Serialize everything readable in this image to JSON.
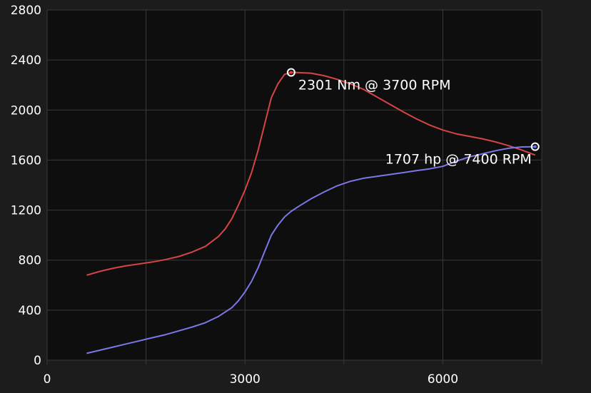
{
  "colors": {
    "background": "#1c1c1c",
    "plot_background": "#0e0e0f",
    "grid": "#3a3a3a",
    "text": "#ffffff",
    "torque": "#d64545",
    "power": "#7a78e8"
  },
  "chart_data": {
    "type": "line",
    "title": "",
    "xlabel": "",
    "ylabel": "",
    "xlim": [
      0,
      7500
    ],
    "ylim": [
      0,
      2800
    ],
    "x_ticks": [
      0,
      3000,
      6000
    ],
    "x_tick_labels": [
      "0",
      "3000",
      "6000"
    ],
    "x_minor_ticks": [
      1500,
      4500,
      7500
    ],
    "y_ticks": [
      0,
      400,
      800,
      1200,
      1600,
      2000,
      2400,
      2800
    ],
    "y_tick_labels": [
      "0",
      "400",
      "800",
      "1200",
      "1600",
      "2000",
      "2400",
      "2800"
    ],
    "grid": true,
    "series": [
      {
        "color": "#d64545",
        "x": [
          600,
          800,
          1000,
          1200,
          1400,
          1600,
          1800,
          2000,
          2200,
          2400,
          2600,
          2700,
          2800,
          2900,
          3000,
          3100,
          3200,
          3300,
          3400,
          3500,
          3600,
          3700,
          3800,
          4000,
          4200,
          4400,
          4600,
          4800,
          5000,
          5200,
          5400,
          5600,
          5800,
          6000,
          6200,
          6400,
          6600,
          6800,
          7000,
          7200,
          7400
        ],
        "values": [
          680,
          710,
          735,
          755,
          770,
          785,
          805,
          830,
          865,
          910,
          990,
          1050,
          1130,
          1240,
          1360,
          1500,
          1680,
          1890,
          2100,
          2210,
          2285,
          2301,
          2300,
          2295,
          2275,
          2245,
          2210,
          2165,
          2105,
          2045,
          1985,
          1930,
          1880,
          1840,
          1810,
          1790,
          1770,
          1745,
          1715,
          1680,
          1640
        ]
      },
      {
        "color": "#7a78e8",
        "x": [
          600,
          800,
          1000,
          1200,
          1400,
          1600,
          1800,
          2000,
          2200,
          2400,
          2600,
          2800,
          2900,
          3000,
          3100,
          3200,
          3300,
          3400,
          3500,
          3600,
          3700,
          3800,
          4000,
          4200,
          4400,
          4600,
          4800,
          5000,
          5200,
          5400,
          5600,
          5800,
          6000,
          6200,
          6400,
          6600,
          6800,
          7000,
          7200,
          7400
        ],
        "values": [
          55,
          80,
          105,
          130,
          155,
          180,
          205,
          235,
          265,
          300,
          350,
          420,
          475,
          545,
          630,
          740,
          870,
          1000,
          1080,
          1145,
          1190,
          1225,
          1290,
          1345,
          1395,
          1430,
          1455,
          1470,
          1485,
          1500,
          1515,
          1530,
          1550,
          1590,
          1625,
          1650,
          1675,
          1695,
          1705,
          1707
        ]
      }
    ],
    "annotations": [
      {
        "text": "2301 Nm @ 3700 RPM",
        "x": 3700,
        "y": 2301,
        "color": "#d64545"
      },
      {
        "text": "1707 hp @ 7400 RPM",
        "x": 7400,
        "y": 1707,
        "color": "#7a78e8"
      }
    ]
  }
}
